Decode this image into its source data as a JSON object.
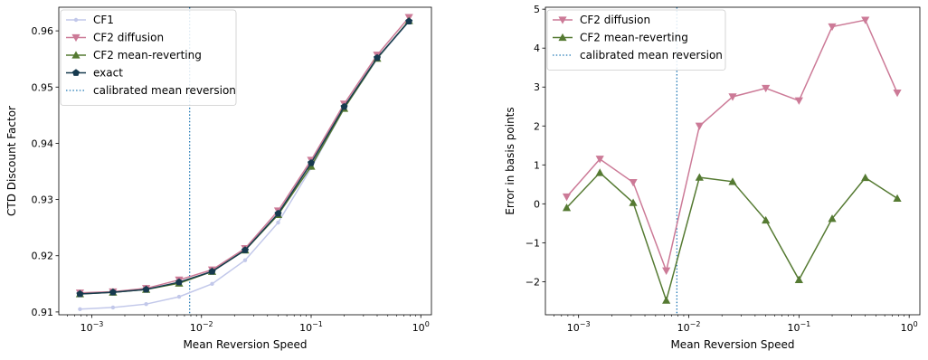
{
  "chart_data": [
    {
      "type": "line",
      "xscale": "log",
      "xlim": [
        0.0005,
        1.25
      ],
      "ylim": [
        0.9095,
        0.9642
      ],
      "xlabel": "Mean Reversion Speed",
      "ylabel": "CTD Discount Factor",
      "xticks": [
        0.001,
        0.01,
        0.1,
        1
      ],
      "xtick_labels": [
        {
          "base": "10",
          "exp": "−3"
        },
        {
          "base": "10",
          "exp": "−2"
        },
        {
          "base": "10",
          "exp": "−1"
        },
        {
          "base": "10",
          "exp": "0"
        }
      ],
      "yticks": [
        0.91,
        0.92,
        0.93,
        0.94,
        0.95,
        0.96
      ],
      "ytick_labels": [
        "0.91",
        "0.92",
        "0.93",
        "0.94",
        "0.95",
        "0.96"
      ],
      "legend_position": "top-left",
      "x": [
        0.00078,
        0.00156,
        0.00313,
        0.00625,
        0.0125,
        0.025,
        0.05,
        0.1,
        0.2,
        0.4,
        0.78
      ],
      "series": [
        {
          "name": "CF1",
          "color": "#c2c8ea",
          "marker": "dot",
          "values": [
            0.9105,
            0.9108,
            0.9114,
            0.9127,
            0.915,
            0.9192,
            0.9259,
            0.9356,
            0.9462,
            0.955,
            0.9617
          ]
        },
        {
          "name": "CF2 diffusion",
          "color": "#cc7a97",
          "marker": "triangle-down",
          "values": [
            0.9134,
            0.9136,
            0.9142,
            0.9157,
            0.9175,
            0.9213,
            0.928,
            0.937,
            0.947,
            0.9557,
            0.9624
          ]
        },
        {
          "name": "CF2 mean-reverting",
          "color": "#557a32",
          "marker": "triangle-up",
          "values": [
            0.9132,
            0.9135,
            0.914,
            0.9151,
            0.9172,
            0.921,
            0.9273,
            0.9359,
            0.9462,
            0.9551,
            0.9618
          ]
        },
        {
          "name": "exact",
          "color": "#173a4f",
          "marker": "pentagon",
          "values": [
            0.9132,
            0.9135,
            0.914,
            0.9153,
            0.9172,
            0.921,
            0.9275,
            0.9365,
            0.9465,
            0.9552,
            0.9617
          ]
        }
      ],
      "vline": {
        "name": "calibrated mean reversion",
        "x": 0.0078,
        "color": "#1f77b4",
        "style": "dotted"
      }
    },
    {
      "type": "line",
      "xscale": "log",
      "xlim": [
        0.0005,
        1.25
      ],
      "ylim": [
        -2.85,
        5.05
      ],
      "xlabel": "Mean Reversion Speed",
      "ylabel": "Error in basis points",
      "xticks": [
        0.001,
        0.01,
        0.1,
        1
      ],
      "xtick_labels": [
        {
          "base": "10",
          "exp": "−3"
        },
        {
          "base": "10",
          "exp": "−2"
        },
        {
          "base": "10",
          "exp": "−1"
        },
        {
          "base": "10",
          "exp": "0"
        }
      ],
      "yticks": [
        -2,
        -1,
        0,
        1,
        2,
        3,
        4,
        5
      ],
      "ytick_labels": [
        "−2",
        "−1",
        "0",
        "1",
        "2",
        "3",
        "4",
        "5"
      ],
      "legend_position": "top-left",
      "x": [
        0.00078,
        0.00156,
        0.00313,
        0.00625,
        0.0125,
        0.025,
        0.05,
        0.1,
        0.2,
        0.4,
        0.78
      ],
      "series": [
        {
          "name": "CF2 diffusion",
          "color": "#cc7a97",
          "marker": "triangle-down",
          "values": [
            0.18,
            1.15,
            0.55,
            -1.72,
            2.0,
            2.75,
            2.97,
            2.65,
            4.55,
            4.72,
            2.85
          ]
        },
        {
          "name": "CF2 mean-reverting",
          "color": "#557a32",
          "marker": "triangle-up",
          "values": [
            -0.1,
            0.8,
            0.03,
            -2.48,
            0.68,
            0.57,
            -0.42,
            -1.95,
            -0.38,
            0.67,
            0.14
          ]
        }
      ],
      "vline": {
        "name": "calibrated mean reversion",
        "x": 0.0078,
        "color": "#1f77b4",
        "style": "dotted"
      }
    }
  ]
}
